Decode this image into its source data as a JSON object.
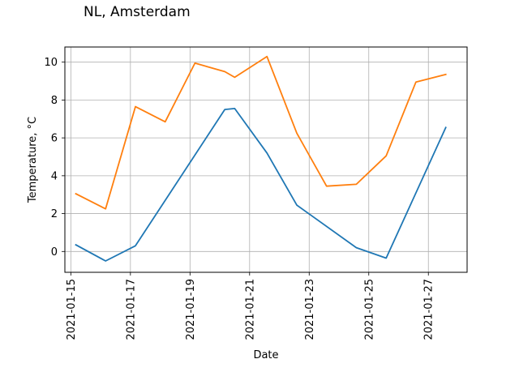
{
  "chart_data": {
    "type": "line",
    "title": "NL, Amsterdam",
    "xlabel": "Date",
    "ylabel": "Temperature, °C",
    "x_tick_labels": [
      "2021-01-15",
      "2021-01-17",
      "2021-01-19",
      "2021-01-21",
      "2021-01-23",
      "2021-01-25",
      "2021-01-27"
    ],
    "y_tick_labels": [
      "0",
      "2",
      "4",
      "6",
      "8",
      "10"
    ],
    "xlim": [
      "2021-01-14.8",
      "2021-01-28.3"
    ],
    "ylim": [
      -1.1,
      10.8
    ],
    "grid": true,
    "series": [
      {
        "color": "#1f77b4",
        "points": [
          {
            "x": "2021-01-15 04:00",
            "y": 0.35
          },
          {
            "x": "2021-01-16 04:00",
            "y": -0.5
          },
          {
            "x": "2021-01-17 04:00",
            "y": 0.3
          },
          {
            "x": "2021-01-20 04:00",
            "y": 7.5
          },
          {
            "x": "2021-01-20 12:00",
            "y": 7.55
          },
          {
            "x": "2021-01-21 14:00",
            "y": 5.2
          },
          {
            "x": "2021-01-22 14:00",
            "y": 2.45
          },
          {
            "x": "2021-01-24 14:00",
            "y": 0.2
          },
          {
            "x": "2021-01-25 14:00",
            "y": -0.35
          },
          {
            "x": "2021-01-27 14:00",
            "y": 6.55
          }
        ]
      },
      {
        "color": "#ff7f0e",
        "points": [
          {
            "x": "2021-01-15 04:00",
            "y": 3.05
          },
          {
            "x": "2021-01-16 04:00",
            "y": 2.25
          },
          {
            "x": "2021-01-17 04:00",
            "y": 7.65
          },
          {
            "x": "2021-01-18 04:00",
            "y": 6.85
          },
          {
            "x": "2021-01-19 04:00",
            "y": 9.95
          },
          {
            "x": "2021-01-20 04:00",
            "y": 9.5
          },
          {
            "x": "2021-01-20 12:00",
            "y": 9.2
          },
          {
            "x": "2021-01-21 14:00",
            "y": 10.3
          },
          {
            "x": "2021-01-22 14:00",
            "y": 6.25
          },
          {
            "x": "2021-01-23 14:00",
            "y": 3.45
          },
          {
            "x": "2021-01-24 14:00",
            "y": 3.55
          },
          {
            "x": "2021-01-25 14:00",
            "y": 5.05
          },
          {
            "x": "2021-01-26 14:00",
            "y": 8.95
          },
          {
            "x": "2021-01-27 14:00",
            "y": 9.35
          }
        ]
      }
    ]
  }
}
